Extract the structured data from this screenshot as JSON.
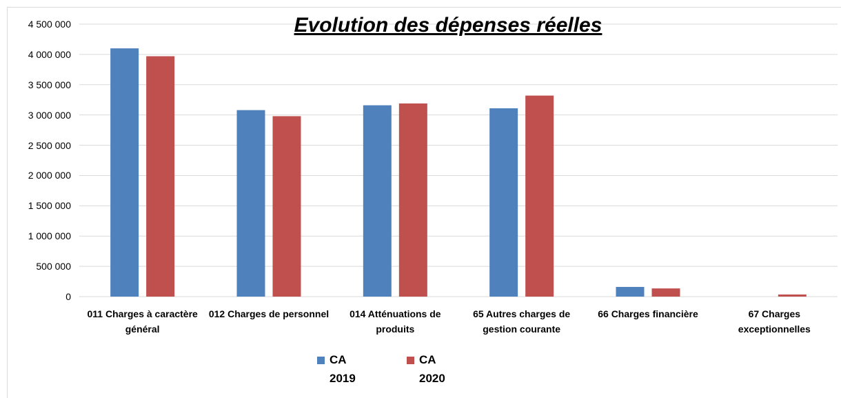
{
  "chart_data": {
    "type": "bar",
    "title": "Evolution  des dépenses réelles",
    "categories": [
      "011 Charges à caractère général",
      "012 Charges de personnel",
      "014 Atténuations de produits",
      "65 Autres charges de gestion courante",
      "66 Charges financière",
      "67 Charges exceptionnelles"
    ],
    "series": [
      {
        "name": "CA 2019",
        "color": "#4f81bd",
        "values": [
          4100000,
          3080000,
          3160000,
          3110000,
          160000,
          0
        ]
      },
      {
        "name": "CA 2020",
        "color": "#c0504d",
        "values": [
          3970000,
          2980000,
          3190000,
          3320000,
          135000,
          35000
        ]
      }
    ],
    "ylim": [
      0,
      4500000
    ],
    "yticks": [
      0,
      {
        "value": 500000,
        "label": "500 000"
      },
      {
        "value": 1000000,
        "label": "1 000 000"
      },
      {
        "value": 1500000,
        "label": "1 500 000"
      },
      {
        "value": 2000000,
        "label": "2 000 000"
      },
      {
        "value": 2500000,
        "label": "2 500 000"
      },
      {
        "value": 3000000,
        "label": "3 000 000"
      },
      {
        "value": 3500000,
        "label": "3 500 000"
      },
      {
        "value": 4000000,
        "label": "4 000 000"
      },
      {
        "value": 4500000,
        "label": "4 500 000"
      }
    ],
    "grid": true,
    "legend": "bottom"
  }
}
